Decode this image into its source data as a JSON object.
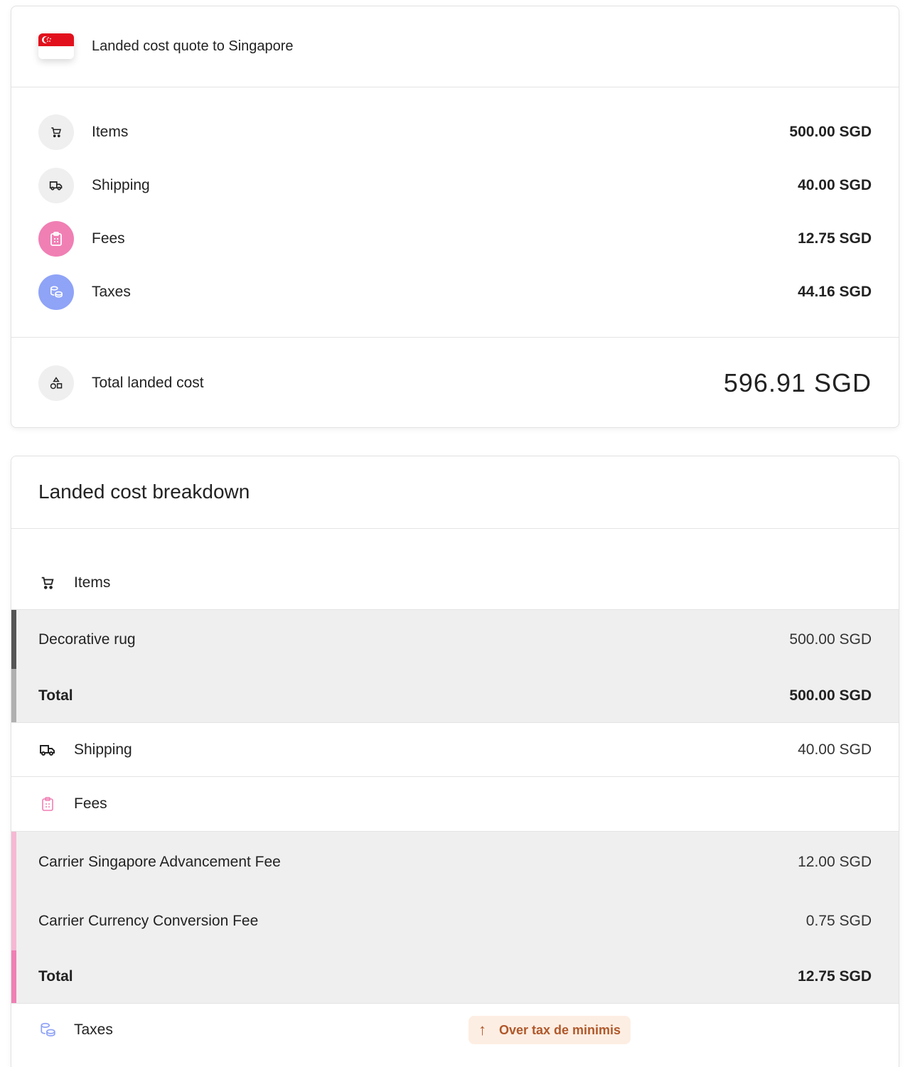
{
  "quote": {
    "title": "Landed cost quote to Singapore",
    "rows": [
      {
        "label": "Items",
        "value": "500.00 SGD",
        "icon": "cart-icon"
      },
      {
        "label": "Shipping",
        "value": "40.00 SGD",
        "icon": "truck-icon"
      },
      {
        "label": "Fees",
        "value": "12.75 SGD",
        "icon": "clipboard-icon"
      },
      {
        "label": "Taxes",
        "value": "44.16 SGD",
        "icon": "coins-icon"
      }
    ],
    "total_label": "Total landed cost",
    "total_value": "596.91 SGD"
  },
  "breakdown": {
    "title": "Landed cost breakdown",
    "items": {
      "label": "Items",
      "lines": [
        {
          "label": "Decorative rug",
          "value": "500.00 SGD"
        }
      ],
      "total_label": "Total",
      "total_value": "500.00 SGD"
    },
    "shipping": {
      "label": "Shipping",
      "value": "40.00 SGD"
    },
    "fees": {
      "label": "Fees",
      "lines": [
        {
          "label": "Carrier Singapore Advancement Fee",
          "value": "12.00 SGD"
        },
        {
          "label": "Carrier Currency Conversion Fee",
          "value": "0.75 SGD"
        }
      ],
      "total_label": "Total",
      "total_value": "12.75 SGD"
    },
    "taxes": {
      "label": "Taxes",
      "badge": "Over tax de minimis"
    }
  },
  "colors": {
    "fees": "#f07fb4",
    "taxes": "#8fa3f7",
    "badge_bg": "#fdeee3",
    "badge_text": "#b0582a"
  }
}
